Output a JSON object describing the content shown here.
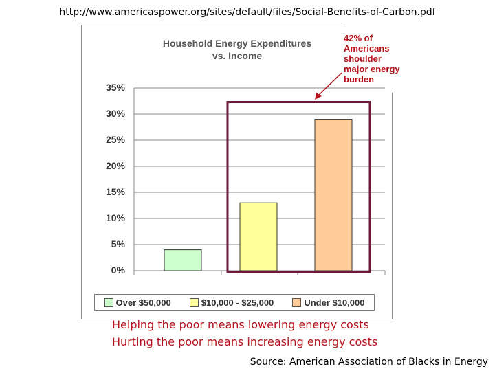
{
  "header_url": "http://www.americaspower.org/sites/default/files/Social-Benefits-of-Carbon.pdf",
  "chart_data": {
    "type": "bar",
    "title": "Household Energy Expenditures vs. Income",
    "title_line1": "Household Energy Expenditures",
    "title_line2": "vs. Income",
    "categories": [
      "Over $50,000",
      "$10,000 - $25,000",
      "Under $10,000"
    ],
    "values": [
      4,
      13,
      29
    ],
    "ylim": [
      0,
      35
    ],
    "yticks": [
      "0%",
      "5%",
      "10%",
      "15%",
      "20%",
      "25%",
      "30%",
      "35%"
    ],
    "ytick_values": [
      0,
      5,
      10,
      15,
      20,
      25,
      30,
      35
    ],
    "colors": [
      "#ccffcc",
      "#ffff99",
      "#ffcc99"
    ],
    "grid": true,
    "legend_position": "bottom",
    "annotation_lines": [
      "42% of",
      "Americans",
      "shoulder",
      "major energy",
      "burden"
    ],
    "highlight_box_color": "#6b1a3a",
    "annotation_color": "#b5121b"
  },
  "captions": {
    "line1": "Helping the poor means lowering energy costs",
    "line2": "Hurting the poor means increasing energy costs"
  },
  "source": "Source: American Association of Blacks in Energy"
}
